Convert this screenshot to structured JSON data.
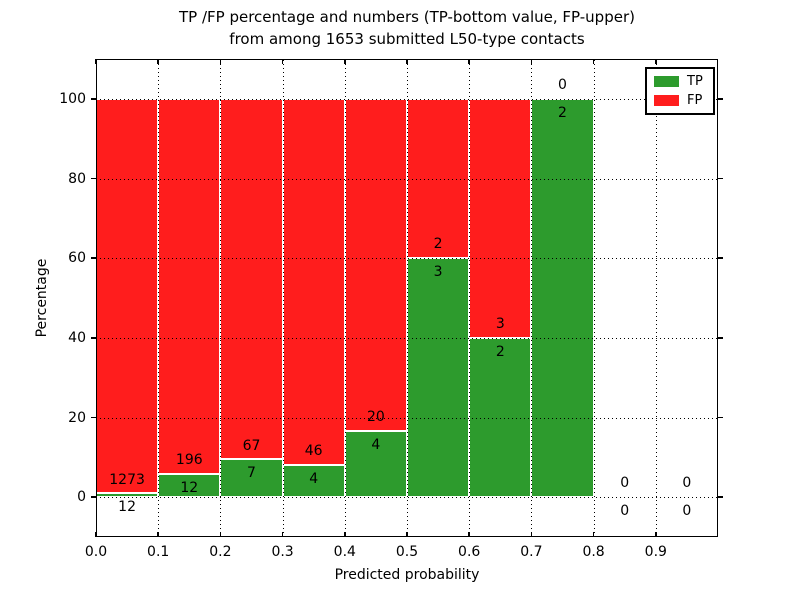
{
  "chart_data": {
    "type": "bar",
    "stacked": true,
    "title_line1": "TP /FP percentage and numbers (TP-bottom value, FP-upper)",
    "title_line2": "from among 1653 submitted L50-type contacts",
    "xlabel": "Predicted probability",
    "ylabel": "Percentage",
    "xlim": [
      0,
      1.0
    ],
    "ylim": [
      -10,
      110
    ],
    "xtick_values": [
      0.0,
      0.1,
      0.2,
      0.3,
      0.4,
      0.5,
      0.6,
      0.7,
      0.8,
      0.9
    ],
    "xtick_labels": [
      "0.0",
      "0.1",
      "0.2",
      "0.3",
      "0.4",
      "0.5",
      "0.6",
      "0.7",
      "0.8",
      "0.9"
    ],
    "ytick_values": [
      0,
      20,
      40,
      60,
      80,
      100
    ],
    "ytick_labels": [
      "0",
      "20",
      "40",
      "60",
      "80",
      "100"
    ],
    "grid": "dotted",
    "legend_position": "upper right",
    "legend": [
      {
        "name": "TP",
        "color": "#2d9b2d"
      },
      {
        "name": "FP",
        "color": "#ff1d1d"
      }
    ],
    "annotation_note": "FP count printed above green top, TP count printed below green top",
    "label_offset_pct": 3.5,
    "bins": [
      {
        "x0": 0.0,
        "x1": 0.1,
        "tp": 12,
        "fp": 1273
      },
      {
        "x0": 0.1,
        "x1": 0.2,
        "tp": 12,
        "fp": 196
      },
      {
        "x0": 0.2,
        "x1": 0.3,
        "tp": 7,
        "fp": 67
      },
      {
        "x0": 0.3,
        "x1": 0.4,
        "tp": 4,
        "fp": 46
      },
      {
        "x0": 0.4,
        "x1": 0.5,
        "tp": 4,
        "fp": 20
      },
      {
        "x0": 0.5,
        "x1": 0.6,
        "tp": 3,
        "fp": 2
      },
      {
        "x0": 0.6,
        "x1": 0.7,
        "tp": 2,
        "fp": 3
      },
      {
        "x0": 0.7,
        "x1": 0.8,
        "tp": 2,
        "fp": 0
      },
      {
        "x0": 0.8,
        "x1": 0.9,
        "tp": 0,
        "fp": 0
      },
      {
        "x0": 0.9,
        "x1": 1.0,
        "tp": 0,
        "fp": 0
      }
    ]
  }
}
